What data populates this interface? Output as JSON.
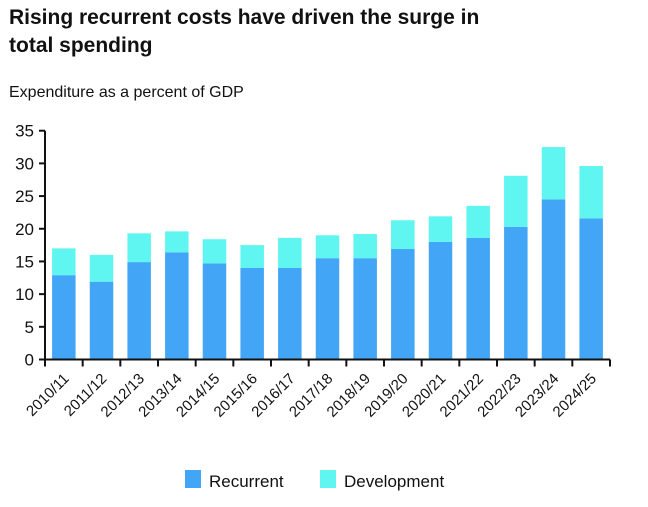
{
  "chart_data": {
    "type": "bar",
    "stacked": true,
    "title": "Rising recurrent costs have driven the surge in total spending",
    "title_lines": [
      "Rising recurrent costs have driven the surge in",
      "total spending"
    ],
    "subtitle": "Expenditure as a percent of GDP",
    "xlabel": "",
    "ylabel": "",
    "ylim": [
      0,
      35
    ],
    "yticks": [
      0,
      5,
      10,
      15,
      20,
      25,
      30,
      35
    ],
    "grid": false,
    "legend_position": "bottom",
    "categories": [
      "2010/11",
      "2011/12",
      "2012/13",
      "2013/14",
      "2014/15",
      "2015/16",
      "2016/17",
      "2017/18",
      "2018/19",
      "2019/20",
      "2020/21",
      "2021/22",
      "2022/23",
      "2023/24",
      "2024/25"
    ],
    "series": [
      {
        "name": "Recurrent",
        "color": "#42a5f5",
        "values": [
          12.9,
          11.9,
          14.9,
          16.4,
          14.7,
          14.0,
          14.0,
          15.5,
          15.5,
          16.9,
          18.0,
          18.6,
          20.3,
          24.5,
          21.6
        ]
      },
      {
        "name": "Development",
        "color": "#5ff5f0",
        "values": [
          4.1,
          4.1,
          4.4,
          3.2,
          3.7,
          3.5,
          4.6,
          3.5,
          3.7,
          4.4,
          3.9,
          4.9,
          7.8,
          8.0,
          8.0
        ]
      }
    ]
  }
}
